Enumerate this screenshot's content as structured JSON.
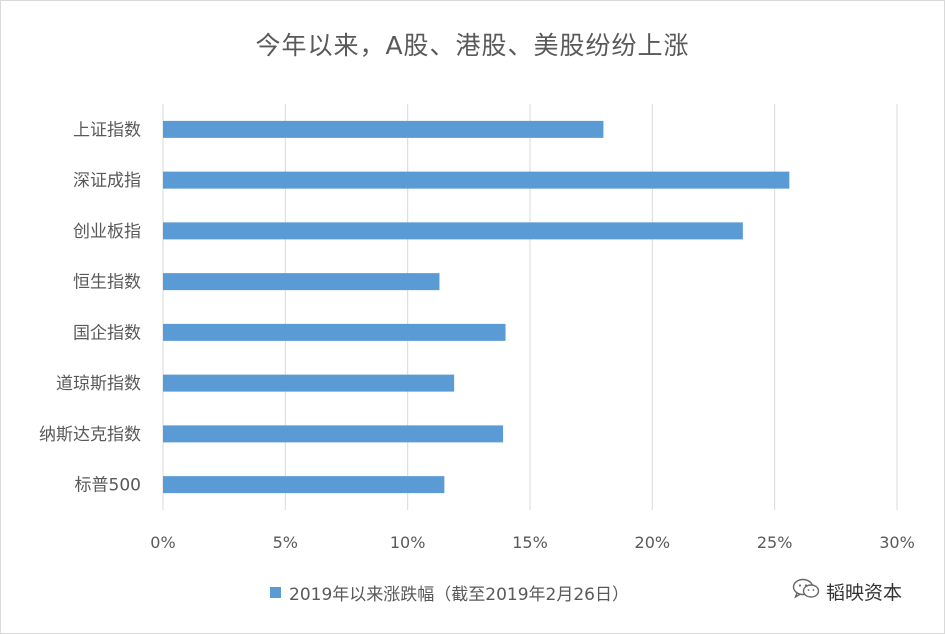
{
  "chart_data": {
    "type": "bar",
    "orientation": "horizontal",
    "title": "今年以来，A股、港股、美股纷纷上涨",
    "categories": [
      "上证指数",
      "深证成指",
      "创业板指",
      "恒生指数",
      "国企指数",
      "道琼斯指数",
      "纳斯达克指数",
      "标普500"
    ],
    "series": [
      {
        "name": "2019年以来涨跌幅（截至2019年2月26日）",
        "values": [
          0.18,
          0.256,
          0.237,
          0.113,
          0.14,
          0.119,
          0.139,
          0.115
        ]
      }
    ],
    "xlim": [
      0,
      0.3
    ],
    "x_ticks": [
      "0%",
      "5%",
      "10%",
      "15%",
      "20%",
      "25%",
      "30%"
    ],
    "grid": "vertical",
    "legend_position": "bottom",
    "bar_color": "#5b9bd5"
  },
  "watermark": {
    "text": "韬映资本",
    "icon": "wechat-icon"
  }
}
